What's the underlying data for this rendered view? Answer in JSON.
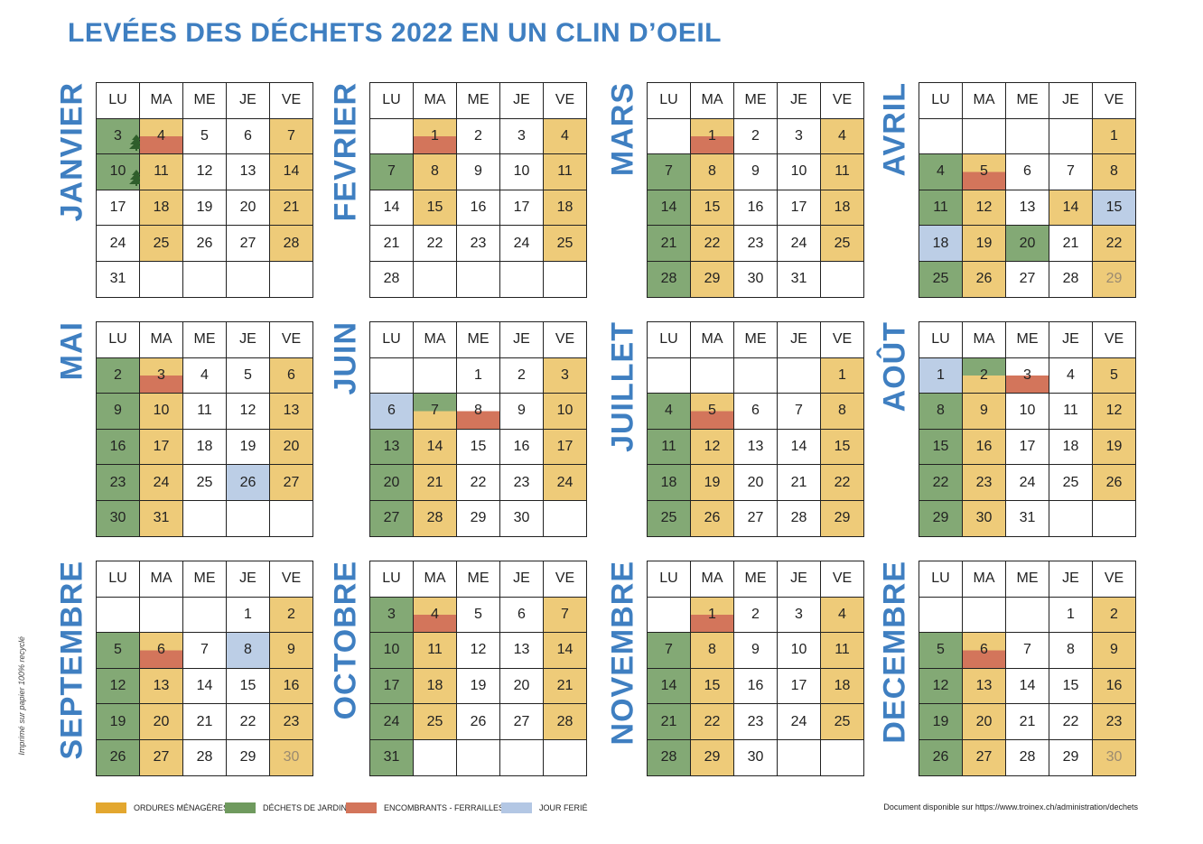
{
  "title": "LEVÉES DES DÉCHETS 2022 EN UN CLIN D’OEIL",
  "weekdays": [
    "LU",
    "MA",
    "ME",
    "JE",
    "VE"
  ],
  "months": [
    {
      "name": "JANVIER",
      "cells": [
        [
          "",
          ""
        ],
        [
          "3",
          "gt",
          "tree"
        ],
        [
          "4",
          "e"
        ],
        [
          "5",
          ""
        ],
        [
          "6",
          ""
        ],
        [
          "7",
          "o"
        ],
        [
          "10",
          "gt",
          "tree"
        ],
        [
          "11",
          "o"
        ],
        [
          "12",
          ""
        ],
        [
          "13",
          ""
        ],
        [
          "14",
          "o"
        ],
        [
          "17",
          ""
        ],
        [
          "18",
          "o"
        ],
        [
          "19",
          ""
        ],
        [
          "20",
          ""
        ],
        [
          "21",
          "o"
        ],
        [
          "24",
          ""
        ],
        [
          "25",
          "o"
        ],
        [
          "26",
          ""
        ],
        [
          "27",
          ""
        ],
        [
          "28",
          "o"
        ],
        [
          "31",
          ""
        ],
        [
          "",
          ""
        ],
        [
          "",
          ""
        ],
        [
          "",
          ""
        ],
        [
          "",
          ""
        ]
      ]
    },
    {
      "name": "FEVRIER",
      "cells": [
        [
          "",
          ""
        ],
        [
          "",
          ""
        ],
        [
          "1",
          "e"
        ],
        [
          "2",
          ""
        ],
        [
          "3",
          ""
        ],
        [
          "4",
          "o"
        ],
        [
          "7",
          "g"
        ],
        [
          "8",
          "o"
        ],
        [
          "9",
          ""
        ],
        [
          "10",
          ""
        ],
        [
          "11",
          "o"
        ],
        [
          "14",
          ""
        ],
        [
          "15",
          "o"
        ],
        [
          "16",
          ""
        ],
        [
          "17",
          ""
        ],
        [
          "18",
          "o"
        ],
        [
          "21",
          ""
        ],
        [
          "22",
          ""
        ],
        [
          "23",
          ""
        ],
        [
          "24",
          ""
        ],
        [
          "25",
          "o"
        ],
        [
          "28",
          ""
        ],
        [
          "",
          ""
        ],
        [
          "",
          ""
        ],
        [
          "",
          ""
        ],
        [
          "",
          ""
        ]
      ]
    },
    {
      "name": "MARS",
      "cells": [
        [
          "",
          ""
        ],
        [
          "",
          ""
        ],
        [
          "1",
          "e"
        ],
        [
          "2",
          ""
        ],
        [
          "3",
          ""
        ],
        [
          "4",
          "o"
        ],
        [
          "7",
          "g"
        ],
        [
          "8",
          "o"
        ],
        [
          "9",
          ""
        ],
        [
          "10",
          ""
        ],
        [
          "11",
          "o"
        ],
        [
          "14",
          "g"
        ],
        [
          "15",
          "o"
        ],
        [
          "16",
          ""
        ],
        [
          "17",
          ""
        ],
        [
          "18",
          "o"
        ],
        [
          "21",
          "g"
        ],
        [
          "22",
          "o"
        ],
        [
          "23",
          ""
        ],
        [
          "24",
          ""
        ],
        [
          "25",
          "o"
        ],
        [
          "28",
          "g"
        ],
        [
          "29",
          "o"
        ],
        [
          "30",
          ""
        ],
        [
          "31",
          ""
        ],
        [
          "",
          ""
        ]
      ]
    },
    {
      "name": "AVRIL",
      "cells": [
        [
          "",
          ""
        ],
        [
          "",
          ""
        ],
        [
          "",
          ""
        ],
        [
          "",
          ""
        ],
        [
          "",
          ""
        ],
        [
          "1",
          "o"
        ],
        [
          "4",
          "g"
        ],
        [
          "5",
          "e"
        ],
        [
          "6",
          ""
        ],
        [
          "7",
          ""
        ],
        [
          "8",
          "o"
        ],
        [
          "11",
          "g"
        ],
        [
          "12",
          "o"
        ],
        [
          "13",
          ""
        ],
        [
          "14",
          "o"
        ],
        [
          "15",
          "f"
        ],
        [
          "18",
          "f"
        ],
        [
          "19",
          "o"
        ],
        [
          "20",
          "g"
        ],
        [
          "21",
          ""
        ],
        [
          "22",
          "o"
        ],
        [
          "25",
          "g"
        ],
        [
          "26",
          "o"
        ],
        [
          "27",
          ""
        ],
        [
          "28",
          ""
        ],
        [
          "29",
          "fo"
        ]
      ]
    },
    {
      "name": "MAI",
      "cells": [
        [
          "",
          ""
        ],
        [
          "2",
          "g"
        ],
        [
          "3",
          "e"
        ],
        [
          "4",
          ""
        ],
        [
          "5",
          ""
        ],
        [
          "6",
          "o"
        ],
        [
          "9",
          "g"
        ],
        [
          "10",
          "o"
        ],
        [
          "11",
          ""
        ],
        [
          "12",
          ""
        ],
        [
          "13",
          "o"
        ],
        [
          "16",
          "g"
        ],
        [
          "17",
          "o"
        ],
        [
          "18",
          ""
        ],
        [
          "19",
          ""
        ],
        [
          "20",
          "o"
        ],
        [
          "23",
          "g"
        ],
        [
          "24",
          "o"
        ],
        [
          "25",
          ""
        ],
        [
          "26",
          "f"
        ],
        [
          "27",
          "o"
        ],
        [
          "30",
          "g"
        ],
        [
          "31",
          "o"
        ],
        [
          "",
          ""
        ],
        [
          "",
          ""
        ],
        [
          "",
          ""
        ]
      ]
    },
    {
      "name": "JUIN",
      "cells": [
        [
          "",
          ""
        ],
        [
          "",
          ""
        ],
        [
          "",
          ""
        ],
        [
          "1",
          ""
        ],
        [
          "2",
          ""
        ],
        [
          "3",
          "o"
        ],
        [
          "6",
          "f"
        ],
        [
          "7",
          "go"
        ],
        [
          "8",
          "we"
        ],
        [
          "9",
          ""
        ],
        [
          "10",
          "o"
        ],
        [
          "13",
          "g"
        ],
        [
          "14",
          "o"
        ],
        [
          "15",
          ""
        ],
        [
          "16",
          ""
        ],
        [
          "17",
          "o"
        ],
        [
          "20",
          "g"
        ],
        [
          "21",
          "o"
        ],
        [
          "22",
          ""
        ],
        [
          "23",
          ""
        ],
        [
          "24",
          "o"
        ],
        [
          "27",
          "g"
        ],
        [
          "28",
          "o"
        ],
        [
          "29",
          ""
        ],
        [
          "30",
          ""
        ],
        [
          "",
          ""
        ]
      ]
    },
    {
      "name": "JUILLET",
      "cells": [
        [
          "",
          ""
        ],
        [
          "",
          ""
        ],
        [
          "",
          ""
        ],
        [
          "",
          ""
        ],
        [
          "",
          ""
        ],
        [
          "1",
          "o"
        ],
        [
          "4",
          "g"
        ],
        [
          "5",
          "e"
        ],
        [
          "6",
          ""
        ],
        [
          "7",
          ""
        ],
        [
          "8",
          "o"
        ],
        [
          "11",
          "g"
        ],
        [
          "12",
          "o"
        ],
        [
          "13",
          ""
        ],
        [
          "14",
          ""
        ],
        [
          "15",
          "o"
        ],
        [
          "18",
          "g"
        ],
        [
          "19",
          "o"
        ],
        [
          "20",
          ""
        ],
        [
          "21",
          ""
        ],
        [
          "22",
          "o"
        ],
        [
          "25",
          "g"
        ],
        [
          "26",
          "o"
        ],
        [
          "27",
          ""
        ],
        [
          "28",
          ""
        ],
        [
          "29",
          "o"
        ]
      ]
    },
    {
      "name": "AOÛT",
      "cells": [
        [
          "",
          ""
        ],
        [
          "1",
          "f"
        ],
        [
          "2",
          "go"
        ],
        [
          "3",
          "we"
        ],
        [
          "4",
          ""
        ],
        [
          "5",
          "o"
        ],
        [
          "8",
          "g"
        ],
        [
          "9",
          "o"
        ],
        [
          "10",
          ""
        ],
        [
          "11",
          ""
        ],
        [
          "12",
          "o"
        ],
        [
          "15",
          "g"
        ],
        [
          "16",
          "o"
        ],
        [
          "17",
          ""
        ],
        [
          "18",
          ""
        ],
        [
          "19",
          "o"
        ],
        [
          "22",
          "g"
        ],
        [
          "23",
          "o"
        ],
        [
          "24",
          ""
        ],
        [
          "25",
          ""
        ],
        [
          "26",
          "o"
        ],
        [
          "29",
          "g"
        ],
        [
          "30",
          "o"
        ],
        [
          "31",
          ""
        ],
        [
          "",
          ""
        ],
        [
          "",
          ""
        ]
      ]
    },
    {
      "name": "SEPTEMBRE",
      "cells": [
        [
          "",
          ""
        ],
        [
          "",
          ""
        ],
        [
          "",
          ""
        ],
        [
          "",
          ""
        ],
        [
          "1",
          ""
        ],
        [
          "2",
          "o"
        ],
        [
          "5",
          "g"
        ],
        [
          "6",
          "e"
        ],
        [
          "7",
          ""
        ],
        [
          "8",
          "f"
        ],
        [
          "9",
          "o"
        ],
        [
          "12",
          "g"
        ],
        [
          "13",
          "o"
        ],
        [
          "14",
          ""
        ],
        [
          "15",
          ""
        ],
        [
          "16",
          "o"
        ],
        [
          "19",
          "g"
        ],
        [
          "20",
          "o"
        ],
        [
          "21",
          ""
        ],
        [
          "22",
          ""
        ],
        [
          "23",
          "o"
        ],
        [
          "26",
          "g"
        ],
        [
          "27",
          "o"
        ],
        [
          "28",
          ""
        ],
        [
          "29",
          ""
        ],
        [
          "30",
          "fo"
        ]
      ]
    },
    {
      "name": "OCTOBRE",
      "cells": [
        [
          "",
          ""
        ],
        [
          "3",
          "g"
        ],
        [
          "4",
          "e"
        ],
        [
          "5",
          ""
        ],
        [
          "6",
          ""
        ],
        [
          "7",
          "o"
        ],
        [
          "10",
          "g"
        ],
        [
          "11",
          "o"
        ],
        [
          "12",
          ""
        ],
        [
          "13",
          ""
        ],
        [
          "14",
          "o"
        ],
        [
          "17",
          "g"
        ],
        [
          "18",
          "o"
        ],
        [
          "19",
          ""
        ],
        [
          "20",
          ""
        ],
        [
          "21",
          "o"
        ],
        [
          "24",
          "g"
        ],
        [
          "25",
          "o"
        ],
        [
          "26",
          ""
        ],
        [
          "27",
          ""
        ],
        [
          "28",
          "o"
        ],
        [
          "31",
          "g"
        ],
        [
          "",
          ""
        ],
        [
          "",
          ""
        ],
        [
          "",
          ""
        ],
        [
          "",
          ""
        ]
      ]
    },
    {
      "name": "NOVEMBRE",
      "cells": [
        [
          "",
          ""
        ],
        [
          "",
          ""
        ],
        [
          "1",
          "e"
        ],
        [
          "2",
          ""
        ],
        [
          "3",
          ""
        ],
        [
          "4",
          "o"
        ],
        [
          "7",
          "g"
        ],
        [
          "8",
          "o"
        ],
        [
          "9",
          ""
        ],
        [
          "10",
          ""
        ],
        [
          "11",
          "o"
        ],
        [
          "14",
          "g"
        ],
        [
          "15",
          "o"
        ],
        [
          "16",
          ""
        ],
        [
          "17",
          ""
        ],
        [
          "18",
          "o"
        ],
        [
          "21",
          "g"
        ],
        [
          "22",
          "o"
        ],
        [
          "23",
          ""
        ],
        [
          "24",
          ""
        ],
        [
          "25",
          "o"
        ],
        [
          "28",
          "g"
        ],
        [
          "29",
          "o"
        ],
        [
          "30",
          ""
        ],
        [
          "",
          ""
        ],
        [
          "",
          ""
        ]
      ]
    },
    {
      "name": "DECEMBRE",
      "cells": [
        [
          "",
          ""
        ],
        [
          "",
          ""
        ],
        [
          "",
          ""
        ],
        [
          "",
          ""
        ],
        [
          "1",
          ""
        ],
        [
          "2",
          "o"
        ],
        [
          "5",
          "g"
        ],
        [
          "6",
          "e"
        ],
        [
          "7",
          ""
        ],
        [
          "8",
          ""
        ],
        [
          "9",
          "o"
        ],
        [
          "12",
          "g"
        ],
        [
          "13",
          "o"
        ],
        [
          "14",
          ""
        ],
        [
          "15",
          ""
        ],
        [
          "16",
          "o"
        ],
        [
          "19",
          "g"
        ],
        [
          "20",
          "o"
        ],
        [
          "21",
          ""
        ],
        [
          "22",
          ""
        ],
        [
          "23",
          "o"
        ],
        [
          "26",
          "g"
        ],
        [
          "27",
          "o"
        ],
        [
          "28",
          ""
        ],
        [
          "29",
          ""
        ],
        [
          "30",
          "fo"
        ]
      ]
    }
  ],
  "legend": [
    {
      "label": "ORDURES MÉNAGÈRES",
      "color": "#e3a72f"
    },
    {
      "label": "DÉCHETS DE JARDIN",
      "color": "#6f9a5e"
    },
    {
      "label": "ENCOMBRANTS - FERRAILLES",
      "color": "#d3755b"
    },
    {
      "label": "JOUR FERIÉ",
      "color": "#b3c7e4"
    }
  ],
  "document_note": "Document disponible sur https://www.troinex.ch/administration/dechets",
  "side_note": "Imprimé sur papier 100% recyclé"
}
